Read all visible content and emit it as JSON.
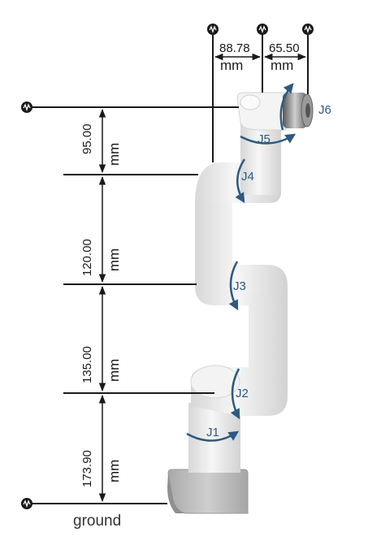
{
  "vertical_dimensions": [
    {
      "value": "95.00",
      "unit": "mm"
    },
    {
      "value": "120.00",
      "unit": "mm"
    },
    {
      "value": "135.00",
      "unit": "mm"
    },
    {
      "value": "173.90",
      "unit": "mm"
    }
  ],
  "horizontal_dimensions": [
    {
      "value": "88.78",
      "unit": "mm"
    },
    {
      "value": "65.50",
      "unit": "mm"
    }
  ],
  "joints": [
    "J1",
    "J2",
    "J3",
    "J4",
    "J5",
    "J6"
  ],
  "ground_label": "ground",
  "colors": {
    "arm_body": "#eeeeee",
    "arm_shadow": "#cfcfcf",
    "base": "#b9b9b9",
    "joint_arrow": "#2c5a80",
    "line": "#1a1a1a"
  }
}
